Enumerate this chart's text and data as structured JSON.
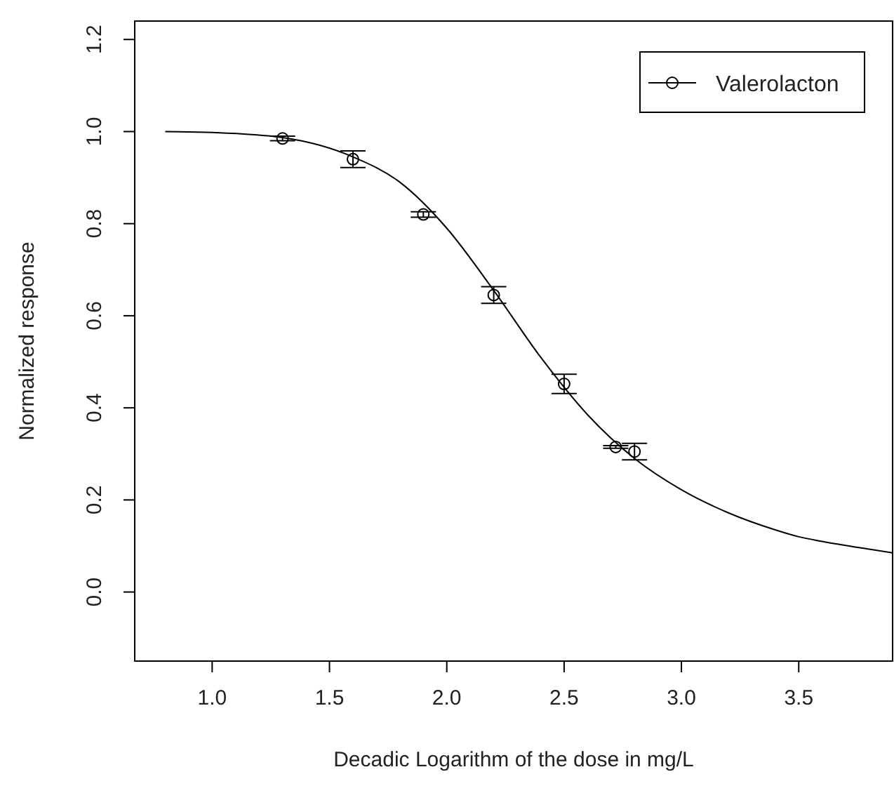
{
  "chart_data": {
    "type": "scatter",
    "xlabel": "Decadic Logarithm of the dose in  mg/L",
    "ylabel": "Normalized response",
    "xlim": [
      0.67,
      3.9
    ],
    "ylim": [
      -0.15,
      1.24
    ],
    "xticks": [
      {
        "value": 1,
        "label": "1.0"
      },
      {
        "value": 1.5,
        "label": "1.5"
      },
      {
        "value": 2,
        "label": "2.0"
      },
      {
        "value": 2.5,
        "label": "2.5"
      },
      {
        "value": 3,
        "label": "3.0"
      },
      {
        "value": 3.5,
        "label": "3.5"
      }
    ],
    "yticks": [
      {
        "value": 0,
        "label": "0.0"
      },
      {
        "value": 0.2,
        "label": "0.2"
      },
      {
        "value": 0.4,
        "label": "0.4"
      },
      {
        "value": 0.6,
        "label": "0.6"
      },
      {
        "value": 0.8,
        "label": "0.8"
      },
      {
        "value": 1,
        "label": "1.0"
      },
      {
        "value": 1.2,
        "label": "1.2"
      }
    ],
    "grid": false,
    "legend": "top right",
    "marker": "circle",
    "series": [
      {
        "name": "Valerolacton",
        "color": "#000000",
        "x": [
          1.3,
          1.6,
          1.9,
          2.2,
          2.5,
          2.72,
          2.8
        ],
        "values": [
          0.985,
          0.94,
          0.82,
          0.645,
          0.452,
          0.315,
          0.305
        ],
        "errors": [
          0.005,
          0.018,
          0.006,
          0.018,
          0.021,
          0.003,
          0.018
        ]
      },
      {
        "type": "line",
        "color": "#000000",
        "line_style": "solid",
        "marker": "none",
        "x": [
          0.8,
          1.0,
          1.3,
          1.6,
          1.8,
          2.0,
          2.2,
          2.4,
          2.6,
          2.8,
          3.0,
          3.2,
          3.4,
          3.5,
          3.6,
          3.8,
          3.9
        ],
        "values": [
          1.0,
          0.998,
          0.987,
          0.945,
          0.89,
          0.79,
          0.655,
          0.51,
          0.385,
          0.29,
          0.222,
          0.172,
          0.135,
          0.12,
          0.11,
          0.093,
          0.085
        ]
      }
    ]
  }
}
